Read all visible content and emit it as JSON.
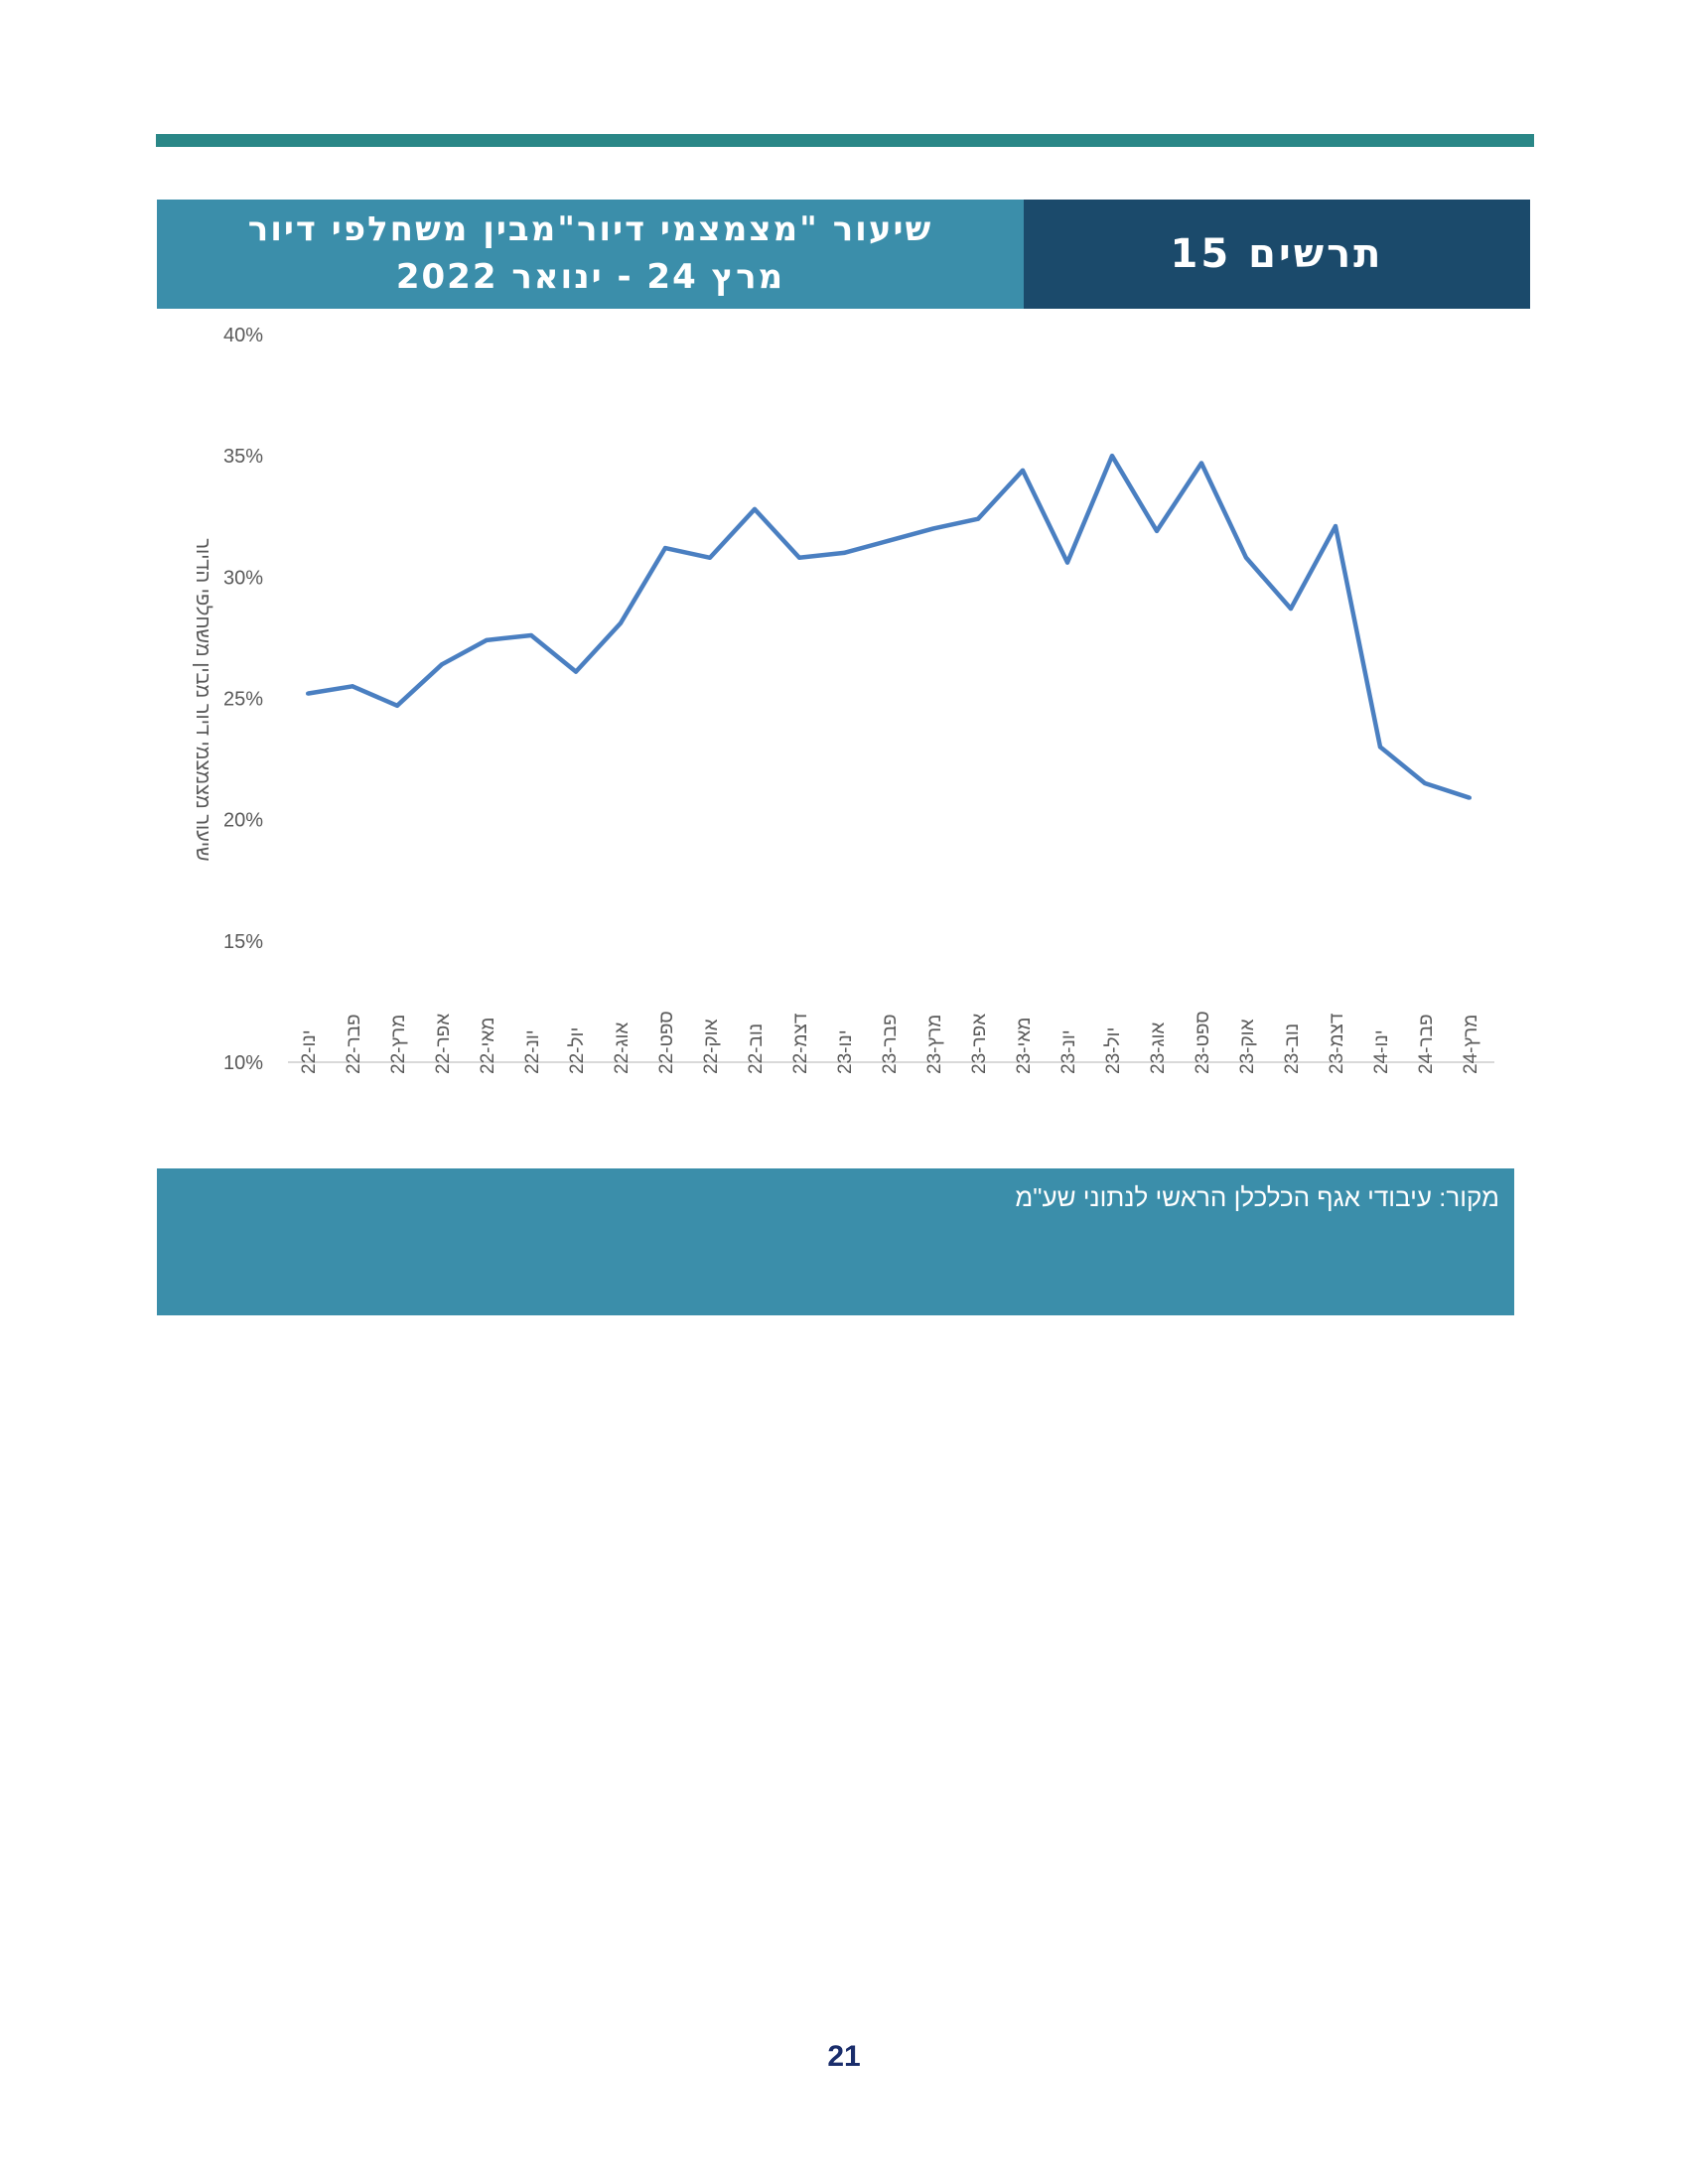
{
  "header": {
    "title_line1": "שיעור \"מצמצמי דיור\"מבין משחלפי דיור",
    "title_line2": "מרץ 24 - ינואר 2022",
    "figure_label": "תרשים 15"
  },
  "source": "מקור: עיבודי אגף הכלכלן הראשי לנתוני שע\"מ",
  "page_number": "21",
  "colors": {
    "top_bar": "#2a8787",
    "title_bg": "#3b8eaa",
    "label_bg": "#1b4a6b",
    "line": "#4a7fc1"
  },
  "chart_data": {
    "type": "line",
    "ylabel": "שיעור מצמצמי דיור מבין משחלפי הדיור",
    "ylim": [
      10,
      40
    ],
    "yticks": [
      "10%",
      "15%",
      "20%",
      "25%",
      "30%",
      "35%",
      "40%"
    ],
    "grid": false,
    "categories": [
      "ינו-22",
      "פבר-22",
      "מרץ-22",
      "אפר-22",
      "מאי-22",
      "יונ-22",
      "יול-22",
      "אוג-22",
      "ספט-22",
      "אוק-22",
      "נוב-22",
      "דצמ-22",
      "ינו-23",
      "פבר-23",
      "מרץ-23",
      "אפר-23",
      "מאי-23",
      "יונ-23",
      "יול-23",
      "אוג-23",
      "ספט-23",
      "אוק-23",
      "נוב-23",
      "דצמ-23",
      "ינו-24",
      "פבר-24",
      "מרץ-24"
    ],
    "series": [
      {
        "values": [
          25.2,
          25.5,
          24.7,
          26.4,
          27.4,
          27.6,
          26.1,
          28.1,
          31.2,
          30.8,
          32.8,
          30.8,
          31.0,
          31.5,
          32.0,
          32.4,
          34.4,
          30.6,
          35.0,
          31.9,
          34.7,
          30.8,
          28.7,
          32.1,
          23.0,
          21.5,
          20.9
        ]
      }
    ]
  }
}
